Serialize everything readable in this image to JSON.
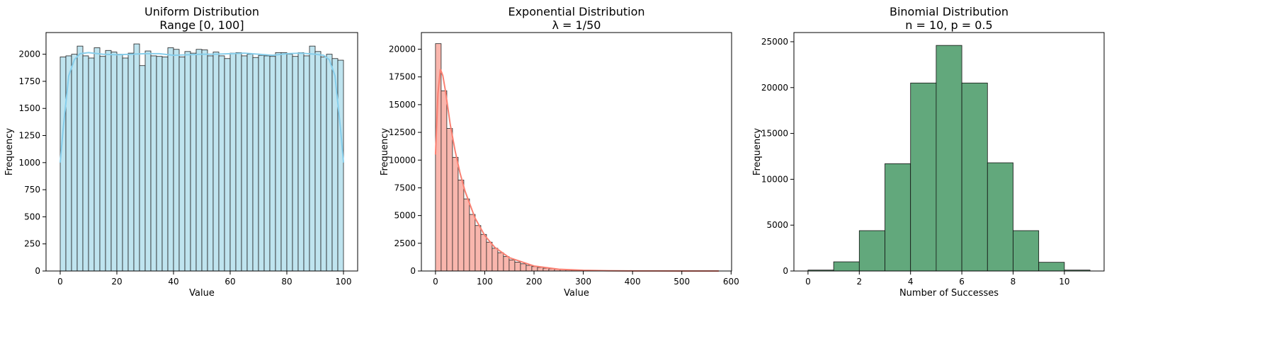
{
  "charts": [
    {
      "type": "bar",
      "title_lines": [
        "Uniform Distribution",
        "Range [0, 100]"
      ],
      "xlabel": "Value",
      "ylabel": "Frequency",
      "xlim": [
        -5,
        105
      ],
      "ylim": [
        0,
        2200
      ],
      "xticks": [
        0,
        20,
        40,
        60,
        80,
        100
      ],
      "yticks": [
        0,
        250,
        500,
        750,
        1000,
        1250,
        1500,
        1750,
        2000
      ],
      "bin_start": 0,
      "bin_width": 2,
      "values": [
        1975,
        1985,
        2000,
        2075,
        1985,
        1965,
        2060,
        1980,
        2035,
        2020,
        2000,
        1965,
        2010,
        2095,
        1895,
        2030,
        1985,
        1980,
        1975,
        2060,
        2045,
        1975,
        2025,
        2010,
        2045,
        2040,
        1985,
        2020,
        1985,
        1960,
        2010,
        2015,
        1985,
        2000,
        1970,
        1990,
        1985,
        1980,
        2015,
        2015,
        2000,
        1980,
        2015,
        1985,
        2075,
        2025,
        1975,
        2000,
        1960,
        1945
      ],
      "kde_x": [
        0,
        1,
        3,
        5,
        7,
        10,
        15,
        20,
        25,
        30,
        35,
        40,
        45,
        50,
        55,
        60,
        65,
        70,
        75,
        80,
        85,
        90,
        93,
        95,
        97,
        99,
        100
      ],
      "kde_y": [
        1000,
        1300,
        1800,
        1950,
        2005,
        2015,
        2000,
        1995,
        2000,
        2005,
        2005,
        1990,
        1995,
        2000,
        2000,
        2005,
        2010,
        2000,
        1990,
        2005,
        2010,
        2000,
        1990,
        1950,
        1800,
        1300,
        1000
      ],
      "bar_fill": "#bfe4ef",
      "bar_edge": "#222222",
      "kde_color": "#87ceeb",
      "kde": true
    },
    {
      "type": "bar",
      "title_lines": [
        "Exponential Distribution",
        "λ = 1/50"
      ],
      "xlabel": "Value",
      "ylabel": "Frequency",
      "xlim": [
        -28.6,
        601
      ],
      "ylim": [
        0,
        21500
      ],
      "xticks": [
        0,
        100,
        200,
        300,
        400,
        500,
        600
      ],
      "yticks": [
        0,
        2500,
        5000,
        7500,
        10000,
        12500,
        15000,
        17500,
        20000
      ],
      "bin_start": 0,
      "bin_width": 11.5,
      "values": [
        20500,
        16250,
        12850,
        10250,
        8200,
        6500,
        5100,
        4100,
        3300,
        2600,
        2050,
        1650,
        1300,
        1000,
        800,
        650,
        510,
        400,
        320,
        255,
        200,
        160,
        125,
        100,
        80,
        65,
        50,
        40,
        30,
        25,
        20,
        15,
        12,
        10,
        8,
        6,
        5,
        4,
        3,
        2,
        2,
        1,
        1,
        1,
        1,
        1,
        1,
        0,
        0,
        1
      ],
      "kde_x": [
        0,
        5,
        10,
        15,
        20,
        30,
        40,
        50,
        60,
        80,
        100,
        120,
        150,
        200,
        250,
        300,
        350,
        400,
        450,
        500,
        575
      ],
      "kde_y": [
        10500,
        16000,
        18200,
        17600,
        16300,
        13200,
        10800,
        8800,
        7200,
        4800,
        3200,
        2150,
        1200,
        450,
        160,
        60,
        25,
        10,
        5,
        2,
        0
      ],
      "bar_fill": "#f9b6ad",
      "bar_edge": "#222222",
      "kde_color": "#fa8072",
      "kde": true
    },
    {
      "type": "bar",
      "title_lines": [
        "Binomial Distribution",
        "n = 10, p = 0.5"
      ],
      "xlabel": "Number of Successes",
      "ylabel": "Frequency",
      "xlim": [
        -0.55,
        11.55
      ],
      "ylim": [
        0,
        26000
      ],
      "xticks": [
        0,
        2,
        4,
        6,
        8,
        10
      ],
      "yticks": [
        0,
        5000,
        10000,
        15000,
        20000,
        25000
      ],
      "bin_start": 0,
      "bin_width": 1,
      "values": [
        100,
        1000,
        4400,
        11700,
        20500,
        24600,
        20500,
        11800,
        4400,
        950,
        100
      ],
      "bar_fill": "#62a87c",
      "bar_edge": "#111111",
      "kde": false
    }
  ]
}
